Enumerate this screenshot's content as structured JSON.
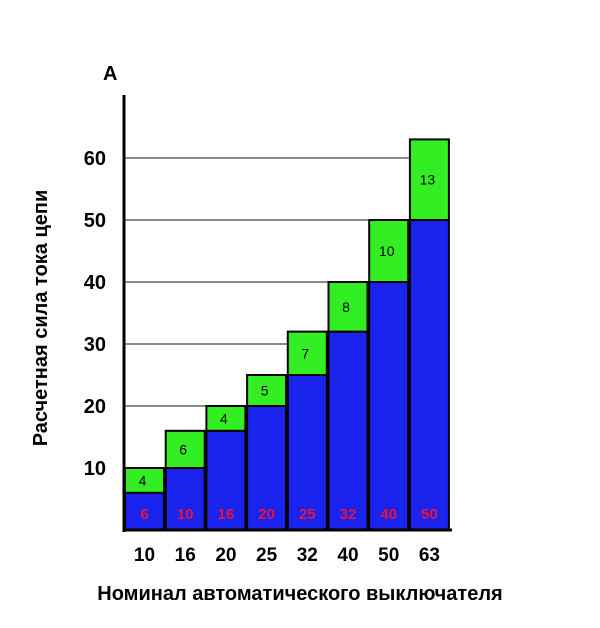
{
  "chart_data": {
    "type": "bar",
    "stacked": true,
    "title": "",
    "unit": "A",
    "ylabel": "Расчетная сила тока цепи",
    "xlabel": "Номинал автоматического выключателя",
    "categories": [
      "10",
      "16",
      "20",
      "25",
      "32",
      "40",
      "50",
      "63"
    ],
    "yticks": [
      "10",
      "20",
      "30",
      "40",
      "50",
      "60"
    ],
    "ylim": [
      0,
      70
    ],
    "grid": true,
    "series": [
      {
        "values": [
          6,
          10,
          16,
          20,
          25,
          32,
          40,
          50
        ],
        "color": "#1a22ee",
        "label_color": "#e8133a"
      },
      {
        "values": [
          4,
          6,
          4,
          5,
          7,
          8,
          10,
          13
        ],
        "color": "#33ee22",
        "label_color": "#000000"
      }
    ]
  }
}
